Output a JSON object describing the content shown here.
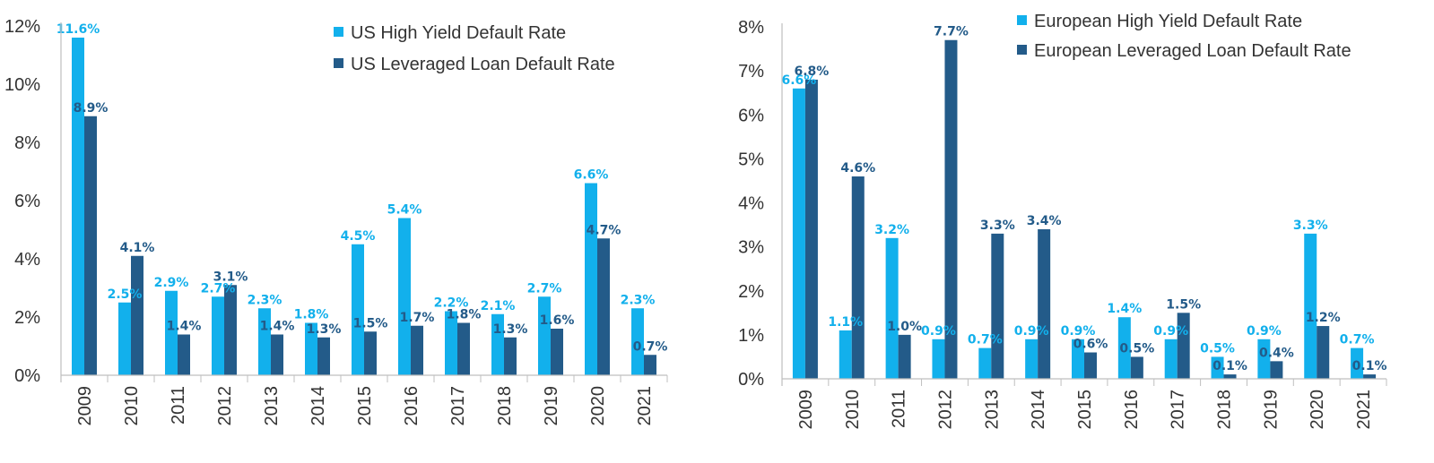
{
  "colors": {
    "light": "#12b0ec",
    "dark": "#235b89",
    "axis": "#bfbfbf",
    "text": "#333333"
  },
  "chart_data": [
    {
      "type": "bar",
      "title": "",
      "xlabel": "",
      "ylabel": "",
      "ylim": [
        0,
        12
      ],
      "yticks": [
        "0%",
        "2%",
        "4%",
        "6%",
        "8%",
        "10%",
        "12%"
      ],
      "categories": [
        "2009",
        "2010",
        "2011",
        "2012",
        "2013",
        "2014",
        "2015",
        "2016",
        "2017",
        "2018",
        "2019",
        "2020",
        "2021"
      ],
      "legend_position": "top-right",
      "series": [
        {
          "name": "US High Yield Default Rate",
          "color": "light",
          "values": [
            11.6,
            2.5,
            2.9,
            2.7,
            2.3,
            1.8,
            4.5,
            5.4,
            2.2,
            2.1,
            2.7,
            6.6,
            2.3
          ],
          "labels": [
            "11.6%",
            "2.5%",
            "2.9%",
            "2.7%",
            "2.3%",
            "1.8%",
            "4.5%",
            "5.4%",
            "2.2%",
            "2.1%",
            "2.7%",
            "6.6%",
            "2.3%"
          ]
        },
        {
          "name": "US Leveraged Loan Default Rate",
          "color": "dark",
          "values": [
            8.9,
            4.1,
            1.4,
            3.1,
            1.4,
            1.3,
            1.5,
            1.7,
            1.8,
            1.3,
            1.6,
            4.7,
            0.7
          ],
          "labels": [
            "8.9%",
            "4.1%",
            "1.4%",
            "3.1%",
            "1.4%",
            "1.3%",
            "1.5%",
            "1.7%",
            "1.8%",
            "1.3%",
            "1.6%",
            "4.7%",
            "0.7%"
          ]
        }
      ]
    },
    {
      "type": "bar",
      "title": "",
      "xlabel": "",
      "ylabel": "",
      "ylim": [
        0,
        8
      ],
      "yticks": [
        "0%",
        "1%",
        "2%",
        "3%",
        "4%",
        "5%",
        "6%",
        "7%",
        "8%"
      ],
      "categories": [
        "2009",
        "2010",
        "2011",
        "2012",
        "2013",
        "2014",
        "2015",
        "2016",
        "2017",
        "2018",
        "2019",
        "2020",
        "2021"
      ],
      "legend_position": "top-right",
      "series": [
        {
          "name": "European High Yield Default Rate",
          "color": "light",
          "values": [
            6.6,
            1.1,
            3.2,
            0.9,
            0.7,
            0.9,
            0.9,
            1.4,
            0.9,
            0.5,
            0.9,
            3.3,
            0.7
          ],
          "labels": [
            "6.6%",
            "1.1%",
            "3.2%",
            "0.9%",
            "0.7%",
            "0.9%",
            "0.9%",
            "1.4%",
            "0.9%",
            "0.5%",
            "0.9%",
            "3.3%",
            "0.7%"
          ]
        },
        {
          "name": "European Leveraged Loan Default Rate",
          "color": "dark",
          "values": [
            6.8,
            4.6,
            1.0,
            7.7,
            3.3,
            3.4,
            0.6,
            0.5,
            1.5,
            0.1,
            0.4,
            1.2,
            0.1
          ],
          "labels": [
            "6.8%",
            "4.6%",
            "1.0%",
            "7.7%",
            "3.3%",
            "3.4%",
            "0.6%",
            "0.5%",
            "1.5%",
            "0.1%",
            "0.4%",
            "1.2%",
            "0.1%"
          ]
        }
      ]
    }
  ]
}
